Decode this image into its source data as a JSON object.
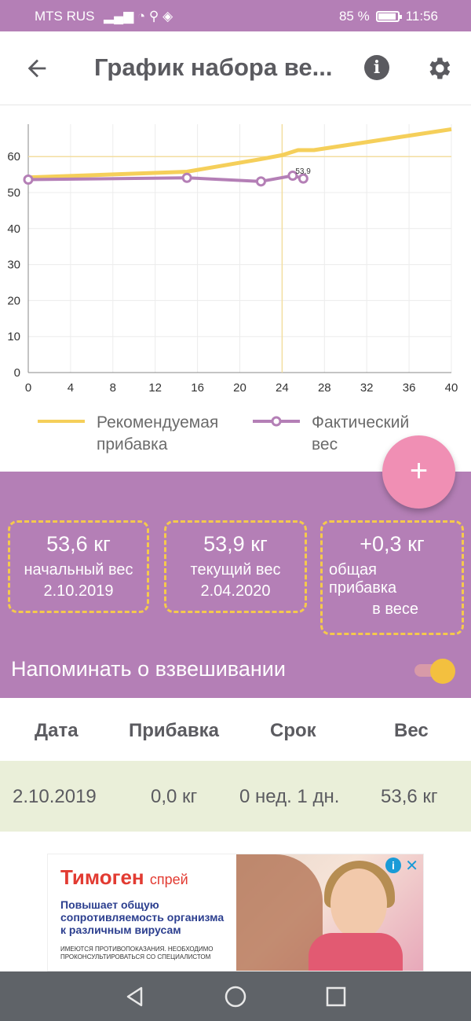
{
  "status_bar": {
    "carrier": "MTS RUS",
    "battery": "85 %",
    "time": "11:56"
  },
  "app_bar": {
    "title": "График набора ве...",
    "back_icon": "arrow-left-icon",
    "info_icon": "info-icon",
    "settings_icon": "gear-icon"
  },
  "chart_data": {
    "type": "line",
    "x_ticks": [
      "0",
      "4",
      "8",
      "12",
      "16",
      "20",
      "24",
      "28",
      "32",
      "36",
      "40"
    ],
    "y_ticks": [
      "0",
      "10",
      "20",
      "30",
      "40",
      "50",
      "60"
    ],
    "xlim": [
      0,
      40
    ],
    "ylim": [
      0,
      69
    ],
    "grid": true,
    "legend_position": "bottom",
    "highlight": {
      "x": 24,
      "y": 60
    },
    "series": [
      {
        "name": "Рекомендуемая прибавка",
        "color": "#f5cf5a",
        "x": [
          0,
          15,
          22,
          24,
          25.5,
          27,
          40
        ],
        "y": [
          54.2,
          55.8,
          59.3,
          60.4,
          61.8,
          61.8,
          67.6
        ]
      },
      {
        "name": "Фактический вес",
        "color": "#b47fb6",
        "x": [
          0,
          15,
          22,
          25,
          26
        ],
        "y": [
          53.6,
          54.1,
          53.1,
          54.7,
          53.9
        ]
      }
    ],
    "point_label": "53,9"
  },
  "legend": {
    "recommended": "Рекомендуемая прибавка",
    "actual": "Фактический вес"
  },
  "fab": {
    "label": "+"
  },
  "summary": {
    "initial": {
      "value": "53,6 кг",
      "label": "начальный вес",
      "date": "2.10.2019"
    },
    "current": {
      "value": "53,9 кг",
      "label": "текущий вес",
      "date": "2.04.2020"
    },
    "total": {
      "value": "+0,3 кг",
      "label": "общая прибавка",
      "label2": "в весе"
    }
  },
  "reminder": {
    "label": "Напоминать о взвешивании",
    "enabled": true
  },
  "table": {
    "headers": [
      "Дата",
      "Прибавка",
      "Срок",
      "Вес"
    ],
    "rows": [
      [
        "2.10.2019",
        "0,0 кг",
        "0 нед. 1 дн.",
        "53,6 кг"
      ]
    ]
  },
  "ad": {
    "brand": "Тимоген",
    "brand_suffix": "спрей",
    "line1": "Повышает общую",
    "line2": "сопротивляемость организма",
    "line3": "к различным вирусам",
    "fine_print": "ИМЕЮТСЯ ПРОТИВОПОКАЗАНИЯ. НЕОБХОДИМО ПРОКОНСУЛЬТИРОВАТЬСЯ СО СПЕЦИАЛИСТОМ"
  }
}
